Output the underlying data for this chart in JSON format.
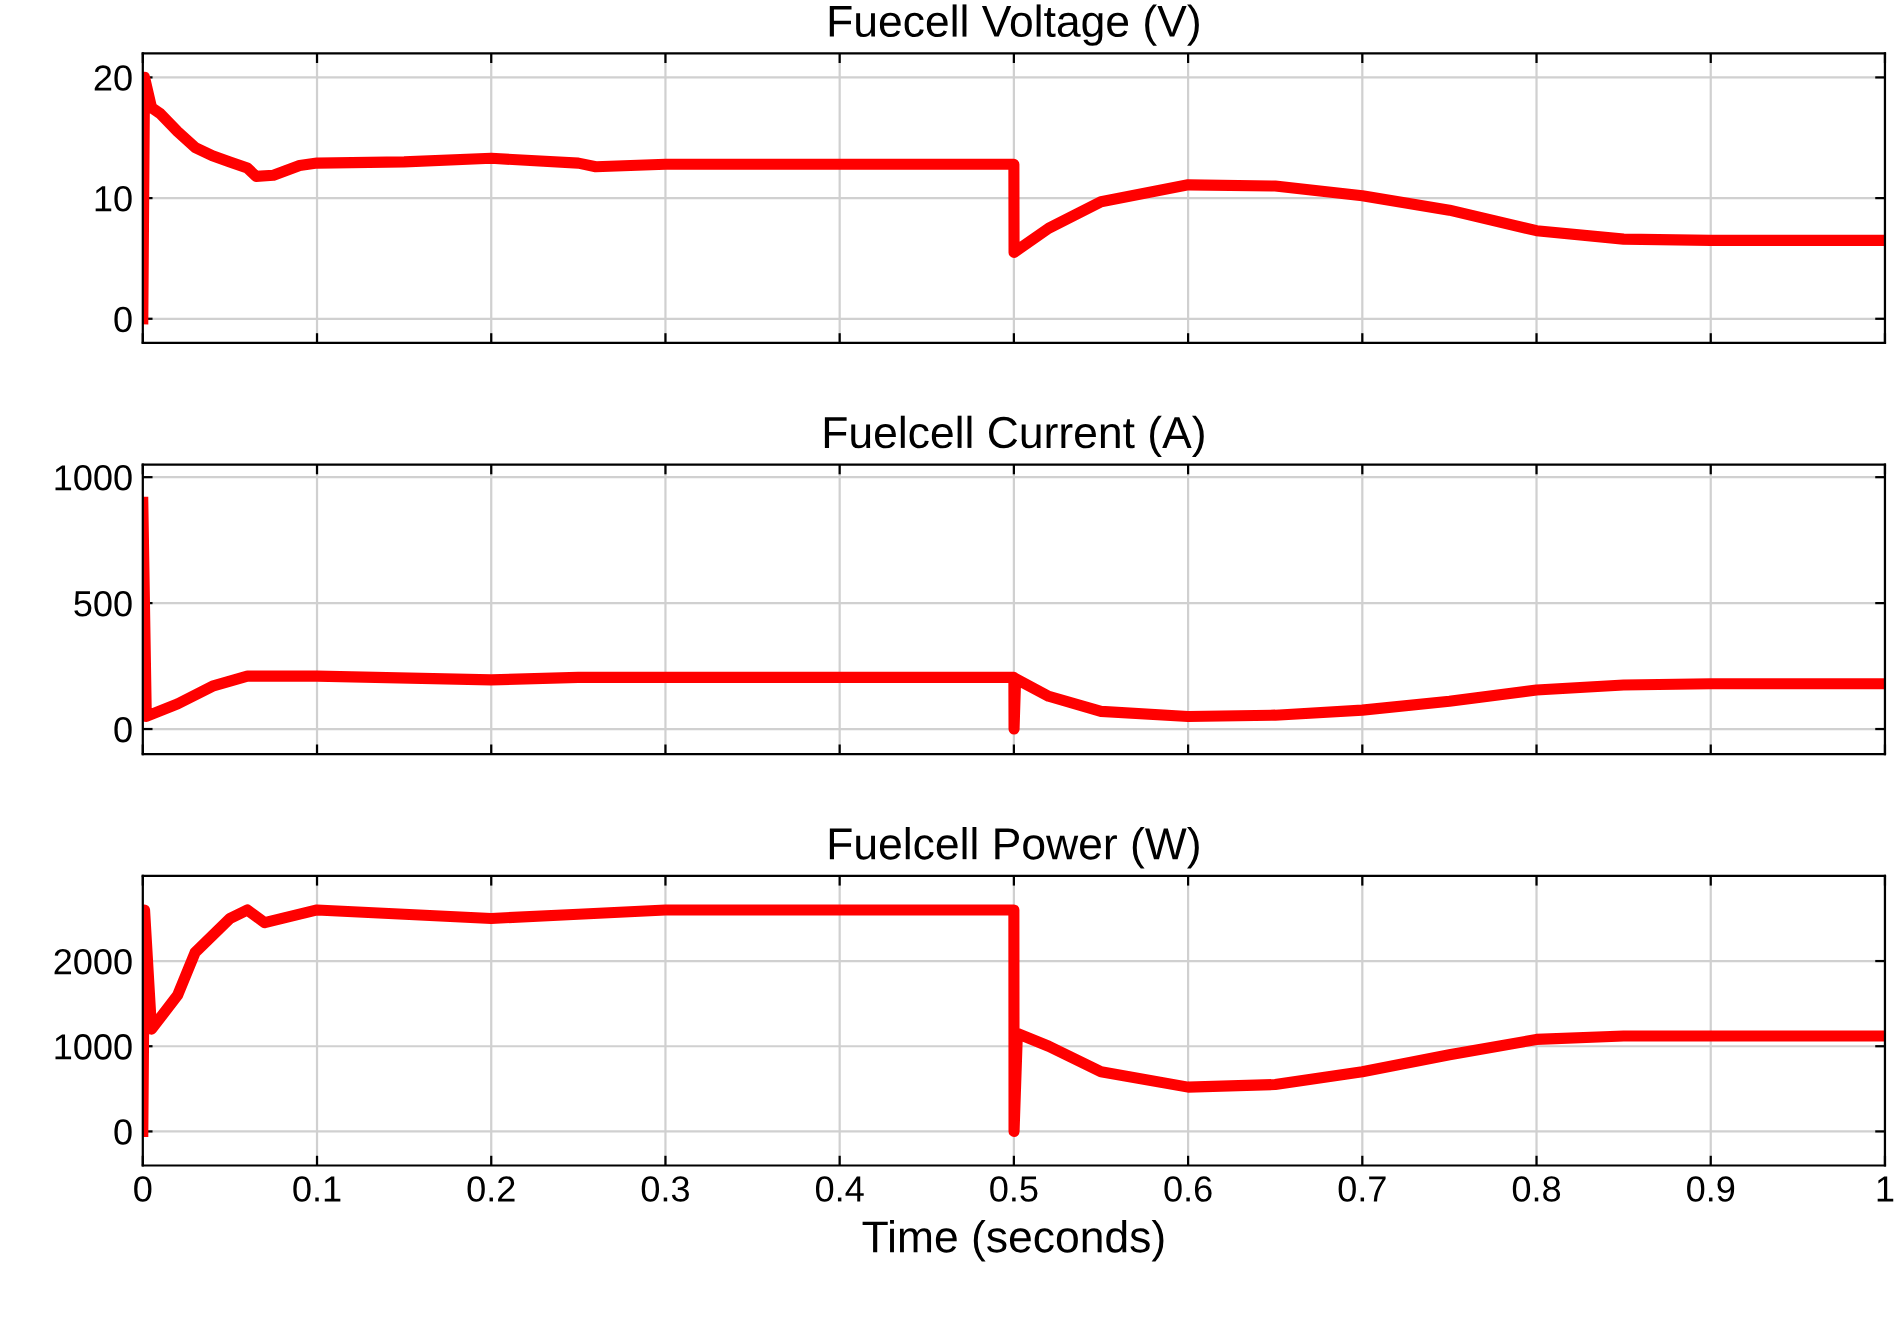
{
  "chart_data": [
    {
      "type": "line",
      "title": "Fuecell Voltage (V)",
      "xlim": [
        0,
        1
      ],
      "ylim": [
        -2,
        22
      ],
      "yticks": [
        0,
        10,
        20
      ],
      "xticks": [
        0,
        0.1,
        0.2,
        0.3,
        0.4,
        0.5,
        0.6,
        0.7,
        0.8,
        0.9,
        1
      ],
      "grid": true,
      "tick_labels": "y",
      "series": [
        {
          "color": "#ff0000",
          "x": [
            0,
            0.001,
            0.005,
            0.01,
            0.02,
            0.03,
            0.04,
            0.05,
            0.06,
            0.065,
            0.075,
            0.09,
            0.1,
            0.15,
            0.2,
            0.25,
            0.26,
            0.3,
            0.4,
            0.5,
            0.5001,
            0.52,
            0.55,
            0.6,
            0.65,
            0.7,
            0.75,
            0.8,
            0.85,
            0.9,
            1.0
          ],
          "values": [
            0,
            20,
            17.5,
            17,
            15.5,
            14.2,
            13.5,
            13,
            12.5,
            11.8,
            11.9,
            12.7,
            12.9,
            13,
            13.3,
            12.9,
            12.6,
            12.8,
            12.8,
            12.8,
            5.5,
            7.5,
            9.7,
            11.1,
            11,
            10.2,
            9,
            7.3,
            6.6,
            6.5,
            6.5
          ]
        }
      ]
    },
    {
      "type": "line",
      "title": "Fuelcell Current (A)",
      "xlim": [
        0,
        1
      ],
      "ylim": [
        -100,
        1050
      ],
      "yticks": [
        0,
        500,
        1000
      ],
      "xticks": [
        0,
        0.1,
        0.2,
        0.3,
        0.4,
        0.5,
        0.6,
        0.7,
        0.8,
        0.9,
        1
      ],
      "grid": true,
      "tick_labels": "y",
      "series": [
        {
          "color": "#ff0000",
          "x": [
            0,
            0.002,
            0.02,
            0.04,
            0.06,
            0.1,
            0.2,
            0.25,
            0.3,
            0.5,
            0.5001,
            0.501,
            0.52,
            0.55,
            0.6,
            0.65,
            0.7,
            0.75,
            0.8,
            0.85,
            0.9,
            1.0
          ],
          "values": [
            900,
            50,
            100,
            170,
            210,
            210,
            195,
            205,
            205,
            205,
            0,
            200,
            130,
            70,
            50,
            55,
            75,
            110,
            155,
            175,
            180,
            180
          ]
        }
      ]
    },
    {
      "type": "line",
      "title": "Fuelcell Power (W)",
      "xlabel": "Time (seconds)",
      "xlim": [
        0,
        1
      ],
      "ylim": [
        -400,
        3000
      ],
      "yticks": [
        0,
        1000,
        2000
      ],
      "xticks": [
        0,
        0.1,
        0.2,
        0.3,
        0.4,
        0.5,
        0.6,
        0.7,
        0.8,
        0.9,
        1
      ],
      "grid": true,
      "series": [
        {
          "color": "#ff0000",
          "x": [
            0,
            0.001,
            0.005,
            0.02,
            0.03,
            0.05,
            0.06,
            0.07,
            0.08,
            0.1,
            0.2,
            0.25,
            0.3,
            0.5,
            0.5001,
            0.502,
            0.52,
            0.55,
            0.6,
            0.65,
            0.7,
            0.75,
            0.8,
            0.85,
            1.0
          ],
          "values": [
            0,
            2600,
            1200,
            1600,
            2100,
            2500,
            2600,
            2450,
            2500,
            2600,
            2500,
            2550,
            2600,
            2600,
            0,
            1150,
            1000,
            700,
            520,
            550,
            700,
            900,
            1080,
            1120,
            1120
          ]
        }
      ]
    }
  ]
}
